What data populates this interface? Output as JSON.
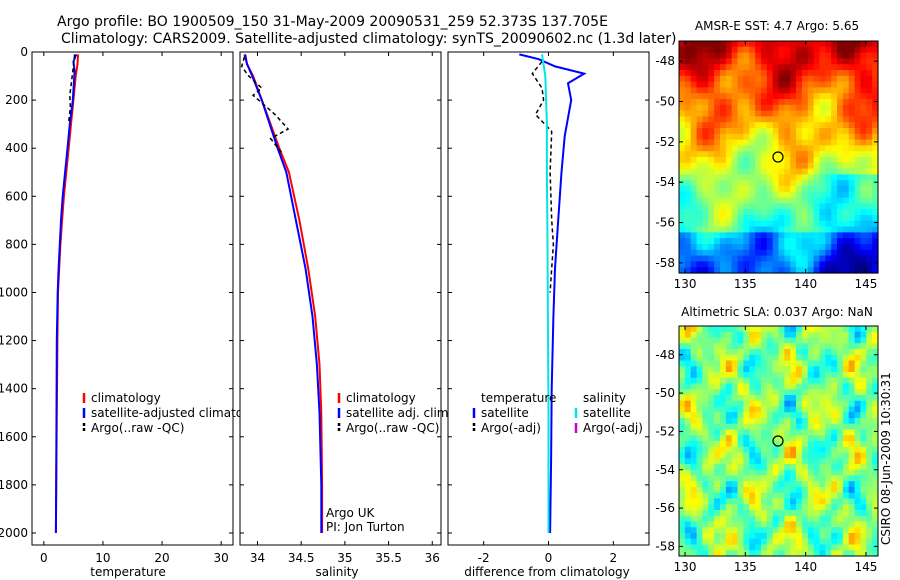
{
  "header": {
    "line1": "Argo profile: BO 1900509_150 31-May-2009 20090531_259 52.373S 137.705E",
    "line2": "Climatology: CARS2009. Satellite-adjusted climatology: synTS_20090602.nc (1.3d later)"
  },
  "footer_label": "CSIRO 08-Jun-2009 10:30:31",
  "colors": {
    "climatology": "#ff0000",
    "satellite": "#0000ff",
    "argo": "#000000",
    "sal_satellite": "#00e5e5",
    "sal_argo": "#cc00cc"
  },
  "chart_data": [
    {
      "type": "line",
      "id": "temperature",
      "xlabel": "temperature",
      "ylabel": "",
      "xlim": [
        -2,
        32
      ],
      "ylim": [
        2050,
        0
      ],
      "y_inverted": true,
      "xticks": [
        "0",
        "10",
        "20",
        "30"
      ],
      "yticks": [
        "0",
        "200",
        "400",
        "600",
        "800",
        "1000",
        "1200",
        "1400",
        "1600",
        "1800",
        "2000"
      ],
      "legend": {
        "placement": "lower-center",
        "entries": [
          {
            "label": "climatology",
            "color": "#ff0000",
            "dashed": false
          },
          {
            "label": "satellite-adjusted climatology",
            "color": "#0000ff",
            "dashed": false
          },
          {
            "label": "Argo(..raw -QC)",
            "color": "#000000",
            "dashed": true
          }
        ]
      },
      "series": [
        {
          "name": "climatology",
          "color": "#ff0000",
          "dashed": false,
          "x": [
            5.8,
            5.7,
            5.4,
            5.0,
            4.6,
            4.2,
            3.8,
            3.4,
            3.1,
            2.8,
            2.6,
            2.4,
            2.3,
            2.2,
            2.1,
            2.05
          ],
          "y": [
            10,
            50,
            100,
            200,
            300,
            400,
            500,
            600,
            700,
            800,
            900,
            1000,
            1200,
            1500,
            1800,
            2000
          ]
        },
        {
          "name": "satellite-adjusted climatology",
          "color": "#0000ff",
          "dashed": false,
          "x": [
            5.5,
            5.0,
            5.2,
            4.9,
            4.4,
            4.0,
            3.6,
            3.2,
            2.9,
            2.7,
            2.5,
            2.35,
            2.2,
            2.15,
            2.1,
            2.05
          ],
          "y": [
            10,
            40,
            80,
            200,
            300,
            400,
            500,
            600,
            700,
            800,
            900,
            1000,
            1200,
            1500,
            1800,
            2000
          ]
        },
        {
          "name": "Argo(..raw -QC)",
          "color": "#000000",
          "dashed": true,
          "x": [
            5.2,
            5.0,
            4.7,
            4.4,
            4.5,
            4.2
          ],
          "y": [
            10,
            60,
            120,
            180,
            230,
            290
          ]
        }
      ]
    },
    {
      "type": "line",
      "id": "salinity",
      "xlabel": "salinity",
      "ylabel": "",
      "xlim": [
        33.8,
        36.1
      ],
      "ylim": [
        2050,
        0
      ],
      "y_inverted": true,
      "xticks": [
        "34",
        "34.5",
        "35",
        "35.5",
        "36"
      ],
      "legend": {
        "placement": "lower-right",
        "entries": [
          {
            "label": "climatology",
            "color": "#ff0000",
            "dashed": false
          },
          {
            "label": "satellite adj. clim.",
            "color": "#0000ff",
            "dashed": false
          },
          {
            "label": "Argo(..raw -QC)",
            "color": "#000000",
            "dashed": true
          }
        ]
      },
      "annotation": [
        "Argo UK",
        "PI: Jon Turton"
      ],
      "series": [
        {
          "name": "climatology",
          "color": "#ff0000",
          "dashed": false,
          "x": [
            33.85,
            33.88,
            33.95,
            34.05,
            34.15,
            34.25,
            34.36,
            34.48,
            34.58,
            34.66,
            34.71,
            34.73,
            34.74,
            34.74
          ],
          "y": [
            10,
            50,
            100,
            200,
            300,
            400,
            500,
            700,
            900,
            1100,
            1300,
            1500,
            1800,
            2000
          ]
        },
        {
          "name": "satellite adj. clim.",
          "color": "#0000ff",
          "dashed": false,
          "x": [
            33.86,
            33.88,
            33.94,
            34.05,
            34.14,
            34.23,
            34.33,
            34.44,
            34.55,
            34.63,
            34.68,
            34.71,
            34.73,
            34.73
          ],
          "y": [
            10,
            50,
            100,
            200,
            300,
            400,
            500,
            700,
            900,
            1100,
            1300,
            1500,
            1800,
            2000
          ]
        },
        {
          "name": "Argo(..raw -QC)",
          "color": "#000000",
          "dashed": true,
          "x": [
            33.85,
            33.82,
            33.9,
            34.05,
            33.95,
            34.2,
            34.35,
            34.15,
            34.28
          ],
          "y": [
            20,
            60,
            100,
            150,
            180,
            260,
            320,
            360,
            420
          ]
        }
      ]
    },
    {
      "type": "line",
      "id": "difference",
      "xlabel": "difference from climatology",
      "ylabel": "",
      "xlim": [
        -3.1,
        3.1
      ],
      "ylim": [
        2050,
        0
      ],
      "y_inverted": true,
      "xticks": [
        "-2",
        "0",
        "2"
      ],
      "legend": {
        "placement": "lower-center",
        "groups": [
          {
            "title": "temperature",
            "entries": [
              {
                "label": "satellite",
                "color": "#0000ff",
                "dashed": false
              },
              {
                "label": "Argo(-adj)",
                "color": "#000000",
                "dashed": true
              }
            ]
          },
          {
            "title": "salinity",
            "entries": [
              {
                "label": "satellite",
                "color": "#00e5e5",
                "dashed": false
              },
              {
                "label": "Argo(-adj)",
                "color": "#cc00cc",
                "dashed": false
              }
            ]
          }
        ]
      },
      "series": [
        {
          "name": "temperature satellite",
          "color": "#0000ff",
          "dashed": false,
          "x": [
            -0.9,
            -0.3,
            0.2,
            1.1,
            0.6,
            0.7,
            0.5,
            0.4,
            0.3,
            0.2,
            0.15,
            0.1,
            0.08,
            0.05
          ],
          "y": [
            10,
            30,
            60,
            90,
            130,
            200,
            350,
            500,
            700,
            900,
            1100,
            1400,
            1700,
            2000
          ]
        },
        {
          "name": "temperature Argo(-adj)",
          "color": "#000000",
          "dashed": true,
          "x": [
            -0.2,
            -0.5,
            -0.2,
            -0.15,
            -0.4,
            0.1,
            0.05,
            0.1,
            0.15,
            0.1,
            0.05
          ],
          "y": [
            40,
            90,
            150,
            200,
            260,
            330,
            500,
            700,
            800,
            900,
            1000
          ]
        },
        {
          "name": "salinity satellite",
          "color": "#00e5e5",
          "dashed": false,
          "x": [
            -0.2,
            -0.1,
            -0.05,
            -0.05,
            -0.03,
            -0.02,
            0.0,
            0.0
          ],
          "y": [
            10,
            100,
            300,
            500,
            800,
            1100,
            1500,
            2000
          ]
        }
      ]
    },
    {
      "type": "heatmap",
      "id": "sst",
      "title": "AMSR-E SST: 4.7 Argo: 5.65",
      "xlim": [
        129.5,
        146
      ],
      "ylim": [
        -58.5,
        -47
      ],
      "xticks": [
        "130",
        "135",
        "140",
        "145"
      ],
      "yticks": [
        "-48",
        "-50",
        "-52",
        "-54",
        "-56",
        "-58"
      ],
      "marker": {
        "x": 137.7,
        "y": -52.4
      }
    },
    {
      "type": "heatmap",
      "id": "sla",
      "title": "Altimetric SLA: 0.037 Argo: NaN",
      "xlim": [
        129.5,
        146
      ],
      "ylim": [
        -58.5,
        -46.5
      ],
      "xticks": [
        "130",
        "135",
        "140",
        "145"
      ],
      "yticks": [
        "-48",
        "-50",
        "-52",
        "-54",
        "-56",
        "-58"
      ],
      "marker": {
        "x": 137.7,
        "y": -52.4
      }
    }
  ]
}
